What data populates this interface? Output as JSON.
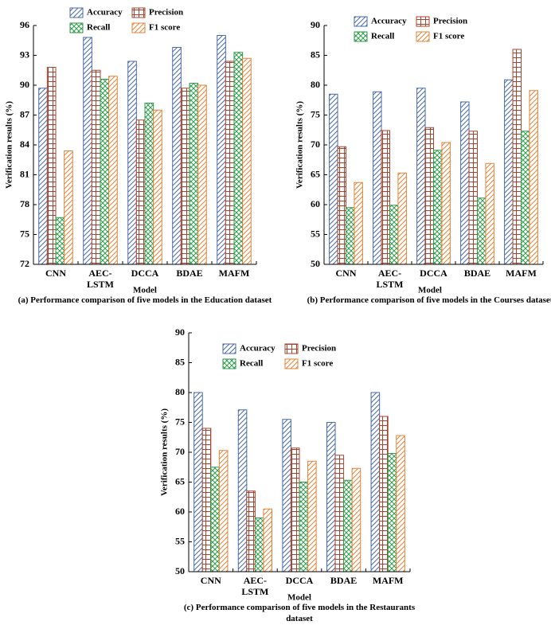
{
  "chart_data": [
    {
      "type": "bar",
      "caption": "(a) Performance comparison of five models in the Education dataset",
      "x_label": "Model",
      "y_label": "Verification results (%)",
      "categories": [
        "CNN",
        "AEC-LSTM",
        "DCCA",
        "BDAE",
        "MAFM"
      ],
      "series": [
        {
          "name": "Accuracy",
          "color": "#4a6aa8",
          "hatch": "diagonal",
          "values": [
            89.7,
            94.8,
            92.4,
            93.8,
            95.0
          ]
        },
        {
          "name": "Precision",
          "color": "#a8432f",
          "hatch": "grid",
          "values": [
            91.8,
            91.5,
            86.5,
            89.7,
            92.4
          ]
        },
        {
          "name": "Recall",
          "color": "#2f9a4c",
          "hatch": "cross",
          "values": [
            76.7,
            90.6,
            88.2,
            90.2,
            93.3
          ]
        },
        {
          "name": "F1 score",
          "color": "#e0843a",
          "hatch": "diagonal",
          "values": [
            83.4,
            90.9,
            87.5,
            90.0,
            92.7
          ]
        }
      ],
      "ylim": [
        72,
        96
      ],
      "yticks": [
        72,
        75,
        78,
        81,
        84,
        87,
        90,
        93,
        96
      ]
    },
    {
      "type": "bar",
      "caption": "(b) Performance comparison of five models in the Courses dataset",
      "x_label": "Model",
      "y_label": "Verification results (%)",
      "categories": [
        "CNN",
        "AEC-LSTM",
        "DCCA",
        "BDAE",
        "MAFM"
      ],
      "series": [
        {
          "name": "Accuracy",
          "color": "#4a6aa8",
          "hatch": "diagonal",
          "values": [
            78.5,
            78.9,
            79.5,
            77.2,
            80.9
          ]
        },
        {
          "name": "Precision",
          "color": "#a8432f",
          "hatch": "grid",
          "values": [
            69.7,
            72.4,
            72.9,
            72.3,
            86.0
          ]
        },
        {
          "name": "Recall",
          "color": "#2f9a4c",
          "hatch": "cross",
          "values": [
            59.5,
            59.9,
            69.1,
            61.1,
            72.3
          ]
        },
        {
          "name": "F1 score",
          "color": "#e0843a",
          "hatch": "diagonal",
          "values": [
            63.7,
            65.3,
            70.4,
            66.9,
            79.1
          ]
        }
      ],
      "ylim": [
        50,
        90
      ],
      "yticks": [
        50,
        55,
        60,
        65,
        70,
        75,
        80,
        85,
        90
      ]
    },
    {
      "type": "bar",
      "caption": "(c) Performance comparison of five models in the Restaurants dataset",
      "x_label": "Model",
      "y_label": "Verification results (%)",
      "categories": [
        "CNN",
        "AEC-LSTM",
        "DCCA",
        "BDAE",
        "MAFM"
      ],
      "series": [
        {
          "name": "Accuracy",
          "color": "#4a6aa8",
          "hatch": "diagonal",
          "values": [
            80.0,
            77.1,
            75.5,
            75.0,
            80.0
          ]
        },
        {
          "name": "Precision",
          "color": "#a8432f",
          "hatch": "grid",
          "values": [
            74.0,
            63.5,
            70.7,
            69.5,
            76.0
          ]
        },
        {
          "name": "Recall",
          "color": "#2f9a4c",
          "hatch": "cross",
          "values": [
            67.5,
            59.0,
            65.0,
            65.3,
            69.8
          ]
        },
        {
          "name": "F1 score",
          "color": "#e0843a",
          "hatch": "diagonal",
          "values": [
            70.3,
            60.5,
            68.5,
            67.3,
            72.8
          ]
        }
      ],
      "ylim": [
        50,
        90
      ],
      "yticks": [
        50,
        55,
        60,
        65,
        70,
        75,
        80,
        85,
        90
      ]
    }
  ]
}
